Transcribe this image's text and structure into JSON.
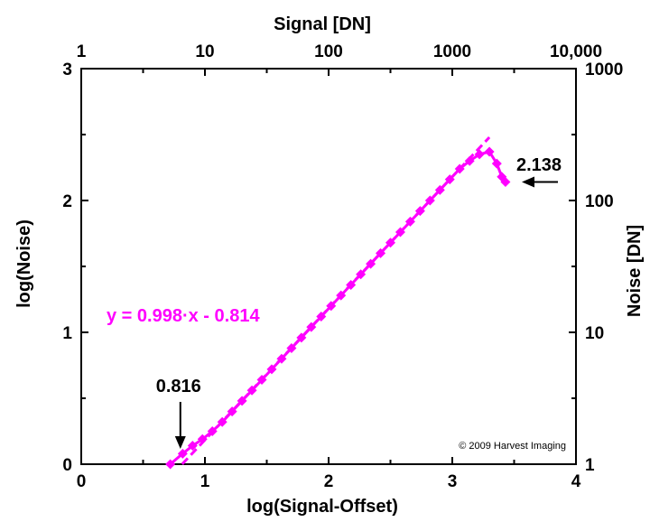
{
  "chart_data": {
    "type": "line",
    "xlabel": "log(Signal-Offset)",
    "ylabel": "log(Noise)",
    "x2label": "Signal [DN]",
    "y2label": "Noise [DN]",
    "xlim": [
      0,
      4
    ],
    "ylim": [
      0,
      3
    ],
    "x_ticks": [
      "0",
      "1",
      "2",
      "3",
      "4"
    ],
    "y_ticks": [
      "0",
      "1",
      "2",
      "3"
    ],
    "x2_ticks": [
      {
        "value": 0,
        "label": "1"
      },
      {
        "value": 1,
        "label": "10"
      },
      {
        "value": 2,
        "label": "100"
      },
      {
        "value": 3,
        "label": "1000"
      },
      {
        "value": 4,
        "label": "10,000"
      }
    ],
    "y2_ticks": [
      {
        "value": 0,
        "label": "1"
      },
      {
        "value": 1,
        "label": "10"
      },
      {
        "value": 2,
        "label": "100"
      },
      {
        "value": 3,
        "label": "1000"
      }
    ],
    "series": [
      {
        "name": "",
        "color": "#ff00ff",
        "marker": "diamond",
        "x": [
          0.72,
          0.82,
          0.9,
          0.98,
          1.06,
          1.14,
          1.22,
          1.3,
          1.38,
          1.46,
          1.54,
          1.62,
          1.7,
          1.78,
          1.86,
          1.94,
          2.02,
          2.1,
          2.18,
          2.26,
          2.34,
          2.42,
          2.5,
          2.58,
          2.66,
          2.74,
          2.82,
          2.9,
          2.98,
          3.06,
          3.14,
          3.22,
          3.3,
          3.36,
          3.4,
          3.43
        ],
        "y": [
          0.0,
          0.08,
          0.14,
          0.19,
          0.25,
          0.32,
          0.4,
          0.48,
          0.56,
          0.64,
          0.72,
          0.8,
          0.88,
          0.96,
          1.04,
          1.12,
          1.2,
          1.28,
          1.36,
          1.44,
          1.52,
          1.6,
          1.68,
          1.76,
          1.84,
          1.92,
          2.0,
          2.08,
          2.16,
          2.24,
          2.3,
          2.35,
          2.37,
          2.28,
          2.18,
          2.14
        ]
      }
    ],
    "fit": {
      "slope": 0.998,
      "intercept": -0.814,
      "x_range": [
        0.816,
        3.3
      ],
      "color": "#ff00ff"
    },
    "fit_label": "y = 0.998·x - 0.814",
    "annotations": [
      {
        "text": "0.816",
        "x": 0.816,
        "y": 0.0
      },
      {
        "text": "2.138",
        "x": 3.43,
        "y": 2.14
      }
    ],
    "copyright": "© 2009 Harvest Imaging",
    "grid": false
  }
}
